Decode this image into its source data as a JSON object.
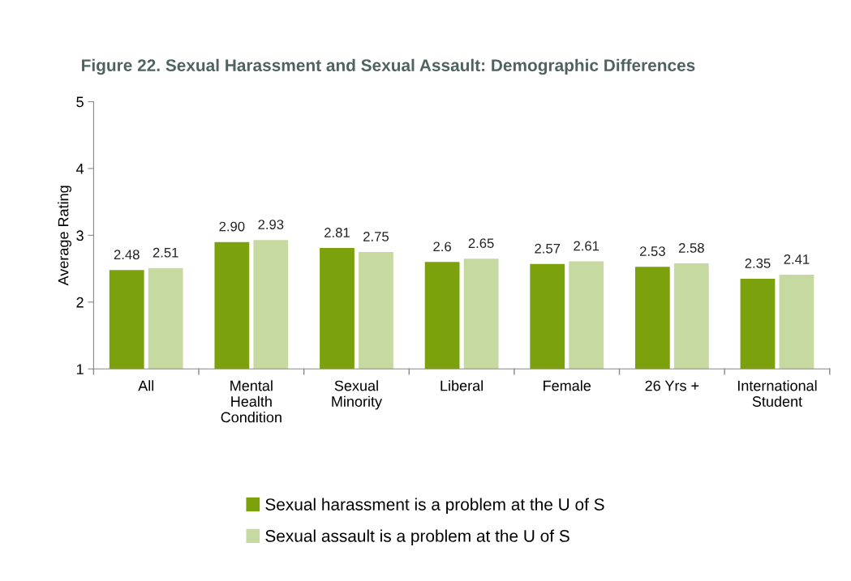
{
  "chart_data": {
    "type": "bar",
    "title": "Figure 22. Sexual Harassment and Sexual Assault: Demographic Differences",
    "ylabel": "Average Rating",
    "categories": [
      "All",
      "Mental\nHealth\nCondition",
      "Sexual\nMinority",
      "Liberal",
      "Female",
      "26 Yrs +",
      "International\nStudent"
    ],
    "series": [
      {
        "name": "Sexual harassment is a problem at the U of S",
        "color": "#7ba20c",
        "values": [
          2.48,
          2.9,
          2.81,
          2.6,
          2.57,
          2.53,
          2.35
        ],
        "value_labels": [
          "2.48",
          "2.90",
          "2.81",
          "2.6",
          "2.57",
          "2.53",
          "2.35"
        ]
      },
      {
        "name": "Sexual assault is a problem at the U of S",
        "color": "#c5d9a0",
        "values": [
          2.51,
          2.93,
          2.75,
          2.65,
          2.61,
          2.58,
          2.41
        ],
        "value_labels": [
          "2.51",
          "2.93",
          "2.75",
          "2.65",
          "2.61",
          "2.58",
          "2.41"
        ]
      }
    ],
    "ylim": [
      1,
      5
    ],
    "yticks": [
      1,
      2,
      3,
      4,
      5
    ],
    "grid": false,
    "legend": "bottom"
  }
}
